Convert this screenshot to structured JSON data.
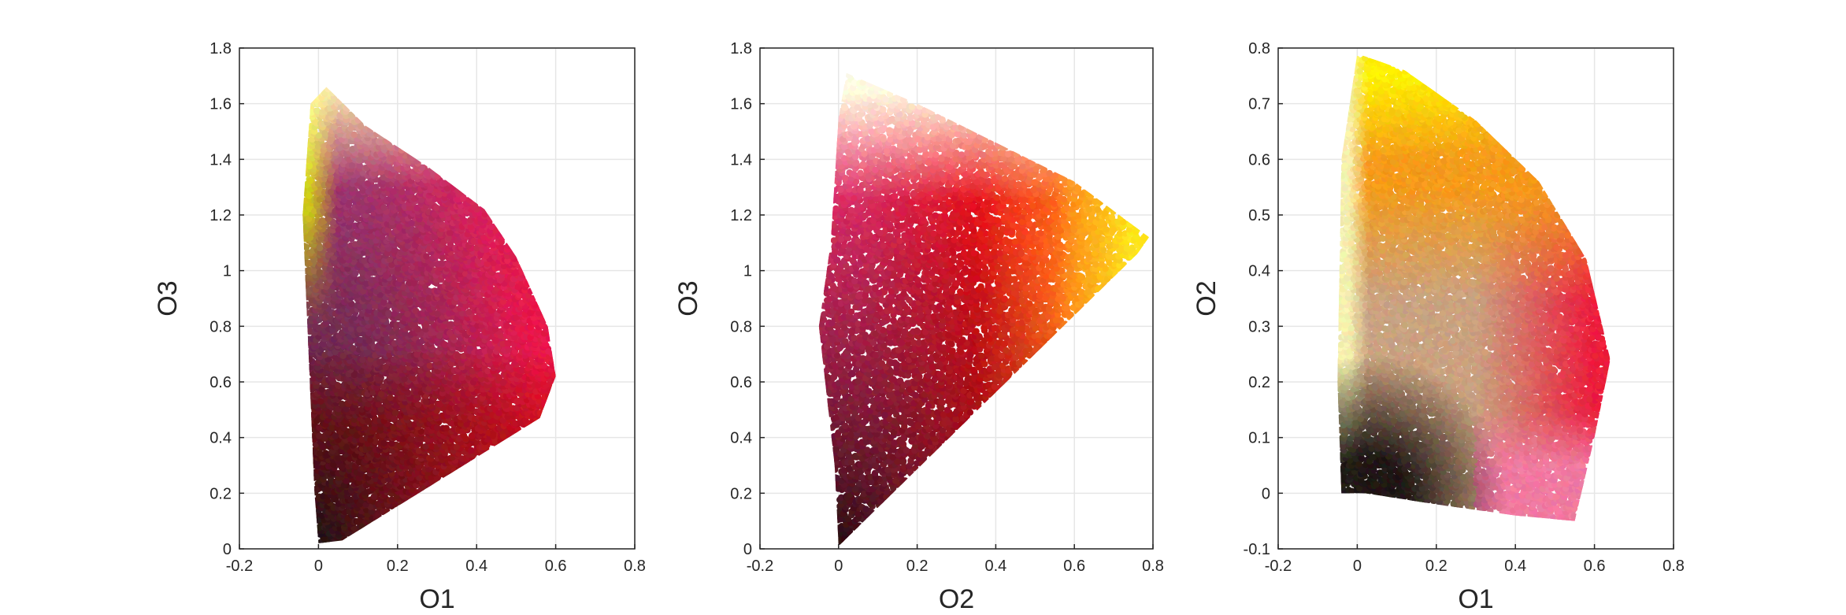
{
  "chart_data": [
    {
      "type": "scatter",
      "xlabel": "O1",
      "ylabel": "O3",
      "xlim": [
        -0.2,
        0.8
      ],
      "ylim": [
        0,
        1.8
      ],
      "xticks": [
        "-0.2",
        "0",
        "0.2",
        "0.4",
        "0.6",
        "0.8"
      ],
      "yticks": [
        "0",
        "0.2",
        "0.4",
        "0.6",
        "0.8",
        "1",
        "1.2",
        "1.4",
        "1.6",
        "1.8"
      ],
      "grid": true,
      "region_outline": [
        [
          0,
          0.02
        ],
        [
          0.06,
          0.03
        ],
        [
          0.56,
          0.47
        ],
        [
          0.6,
          0.62
        ],
        [
          0.58,
          0.8
        ],
        [
          0.5,
          1.05
        ],
        [
          0.42,
          1.22
        ],
        [
          0.28,
          1.37
        ],
        [
          0.12,
          1.52
        ],
        [
          0.02,
          1.66
        ],
        [
          -0.02,
          1.6
        ],
        [
          -0.04,
          1.2
        ],
        [
          -0.01,
          0.2
        ]
      ],
      "colors": {
        "origin": "#141414",
        "high_y": "#fffdb0",
        "low_x_mid_y": "#f0ea1e",
        "high_x": "#e8174a",
        "high_x_low_y": "#d01020",
        "mid": "#b33a7a"
      }
    },
    {
      "type": "scatter",
      "xlabel": "O2",
      "ylabel": "O3",
      "xlim": [
        -0.2,
        0.8
      ],
      "ylim": [
        0,
        1.8
      ],
      "xticks": [
        "-0.2",
        "0",
        "0.2",
        "0.4",
        "0.6",
        "0.8"
      ],
      "yticks": [
        "0",
        "0.2",
        "0.4",
        "0.6",
        "0.8",
        "1",
        "1.2",
        "1.4",
        "1.6",
        "1.8"
      ],
      "grid": true,
      "region_outline": [
        [
          0,
          0.01
        ],
        [
          0.76,
          1.06
        ],
        [
          0.79,
          1.12
        ],
        [
          0.6,
          1.32
        ],
        [
          0.4,
          1.46
        ],
        [
          0.2,
          1.6
        ],
        [
          0.02,
          1.71
        ],
        [
          0,
          1.55
        ],
        [
          -0.02,
          1.1
        ],
        [
          -0.05,
          0.8
        ],
        [
          -0.01,
          0.3
        ]
      ],
      "colors": {
        "origin": "#1a0a0a",
        "high_y": "#fffde0",
        "high_x": "#ffe81a",
        "low_x_mid_y": "#f02f6e",
        "diag_mid": "#ff7a1a",
        "diag_low": "#e8101a"
      }
    },
    {
      "type": "scatter",
      "xlabel": "O1",
      "ylabel": "O2",
      "xlim": [
        -0.2,
        0.8
      ],
      "ylim": [
        -0.1,
        0.8
      ],
      "xticks": [
        "-0.2",
        "0",
        "0.2",
        "0.4",
        "0.6",
        "0.8"
      ],
      "yticks": [
        "-0.1",
        "0",
        "0.1",
        "0.2",
        "0.3",
        "0.4",
        "0.5",
        "0.6",
        "0.7",
        "0.8"
      ],
      "grid": true,
      "region_outline": [
        [
          -0.04,
          0.0
        ],
        [
          0.02,
          0.0
        ],
        [
          0.2,
          -0.02
        ],
        [
          0.4,
          -0.04
        ],
        [
          0.55,
          -0.05
        ],
        [
          0.6,
          0.1
        ],
        [
          0.64,
          0.24
        ],
        [
          0.58,
          0.42
        ],
        [
          0.46,
          0.56
        ],
        [
          0.3,
          0.67
        ],
        [
          0.12,
          0.76
        ],
        [
          0.0,
          0.79
        ],
        [
          -0.04,
          0.6
        ],
        [
          -0.05,
          0.2
        ]
      ],
      "colors": {
        "origin": "#161010",
        "high_y": "#fff100",
        "low_x": "#f5f0b0",
        "mid_upper": "#f59a1a",
        "high_x": "#ec1c3c",
        "low_y_mid_x": "#f07aa0",
        "mid": "#caa280"
      }
    }
  ]
}
